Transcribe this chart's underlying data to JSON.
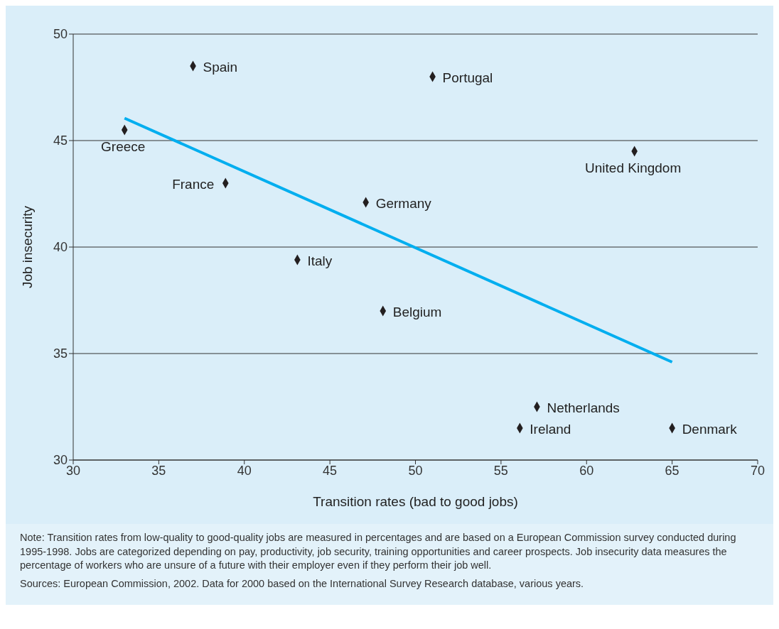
{
  "chart_data": {
    "type": "scatter",
    "xlabel": "Transition rates (bad to good jobs)",
    "ylabel": "Job insecurity",
    "xlim": [
      30,
      70
    ],
    "xticks": [
      30,
      35,
      40,
      45,
      50,
      55,
      60,
      65,
      70
    ],
    "ylim": [
      30,
      50
    ],
    "yticks": [
      30,
      35,
      40,
      45,
      50
    ],
    "grid": "y",
    "marker": "diamond",
    "series": [
      {
        "color": "#231f20",
        "x": [
          37,
          51,
          33,
          62.8,
          38.9,
          47.1,
          43.1,
          48.1,
          57.1,
          56.1,
          65
        ],
        "values": [
          48.5,
          48,
          45.5,
          44.5,
          43,
          42.1,
          39.4,
          37,
          32.5,
          31.5,
          31.5
        ]
      },
      {
        "type": "line",
        "marker": "none",
        "color": "#00aeef",
        "x": [
          33,
          65
        ],
        "values": [
          46.05,
          34.6
        ]
      }
    ],
    "annotations": [
      {
        "text": "Spain",
        "x": 37,
        "y": 48.5
      },
      {
        "text": "Portugal",
        "x": 51,
        "y": 48
      },
      {
        "text": "Greece",
        "x": 33,
        "y": 45.5
      },
      {
        "text": "United Kingdom",
        "x": 62.8,
        "y": 44.5
      },
      {
        "text": "France",
        "x": 38.9,
        "y": 43
      },
      {
        "text": "Germany",
        "x": 47.1,
        "y": 42.1
      },
      {
        "text": "Italy",
        "x": 43.1,
        "y": 39.4
      },
      {
        "text": "Belgium",
        "x": 48.1,
        "y": 37
      },
      {
        "text": "Netherlands",
        "x": 57.1,
        "y": 32.5
      },
      {
        "text": "Ireland",
        "x": 56.1,
        "y": 31.5
      },
      {
        "text": "Denmark",
        "x": 65,
        "y": 31.5
      },
      "Note: Transition rates from low-quality to good-quality jobs are measured in percentages and are based on a European Commission survey conducted during 1995-1998. Jobs are categorized depending on pay, productivity, job security, training opportunities and career prospects. Job insecurity data measures the percentage of workers who are unsure of a future with their employer even if they perform their job well.",
      "Sources: European Commission, 2002. Data for 2000 based on the International Survey Research database, various years."
    ]
  }
}
